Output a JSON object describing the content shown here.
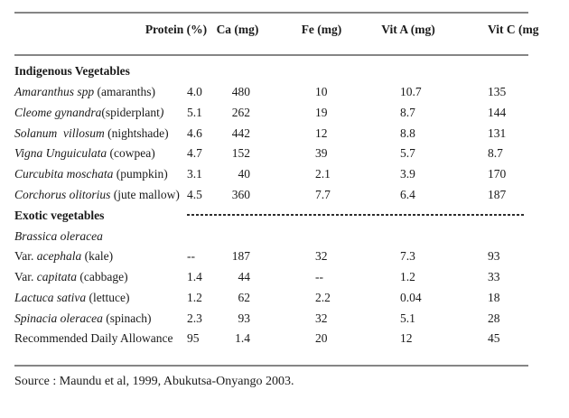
{
  "table": {
    "headers": {
      "protein": "Protein (%)",
      "ca": "Ca (mg)",
      "fe": "Fe (mg)",
      "vit_a": "Vit A (mg)",
      "vit_c": "Vit C (mg"
    },
    "rows": [
      {
        "type": "section",
        "name_parts": [
          {
            "t": "Indigenous Vegetables",
            "i": false,
            "b": true
          }
        ]
      },
      {
        "type": "data",
        "name_parts": [
          {
            "t": "Amaranthus spp",
            "i": true
          },
          {
            "t": " (amaranths)",
            "i": false
          }
        ],
        "protein": "4.0",
        "ca": "480",
        "fe": "10",
        "vit_a": "10.7",
        "vit_c": "135"
      },
      {
        "type": "data",
        "name_parts": [
          {
            "t": "Cleome gynandra",
            "i": true
          },
          {
            "t": "(spiderplant",
            "i": false
          },
          {
            "t": ")",
            "i": true
          }
        ],
        "protein": "5.1",
        "ca": "262",
        "fe": "19",
        "vit_a": "8.7",
        "vit_c": "144"
      },
      {
        "type": "data",
        "name_parts": [
          {
            "t": "Solanum  villosum",
            "i": true
          },
          {
            "t": " (nightshade)",
            "i": false
          }
        ],
        "protein": "4.6",
        "ca": "442",
        "fe": "12",
        "vit_a": "8.8",
        "vit_c": "131"
      },
      {
        "type": "data",
        "name_parts": [
          {
            "t": "Vigna Unguiculata",
            "i": true
          },
          {
            "t": " (cowpea)",
            "i": false
          }
        ],
        "protein": "4.7",
        "ca": "152",
        "fe": "39",
        "vit_a": "5.7",
        "vit_c": "8.7"
      },
      {
        "type": "data",
        "name_parts": [
          {
            "t": "Curcubita moschata",
            "i": true
          },
          {
            "t": " (pumpkin)",
            "i": false
          }
        ],
        "protein": "3.1",
        "ca": "40",
        "fe": "2.1",
        "vit_a": "3.9",
        "vit_c": "170"
      },
      {
        "type": "data",
        "name_parts": [
          {
            "t": "Corchorus olitorius",
            "i": true
          },
          {
            "t": " (jute mallow)",
            "i": false
          }
        ],
        "protein": "4.5",
        "ca": "360",
        "fe": "7.7",
        "vit_a": "6.4",
        "vit_c": "187"
      },
      {
        "type": "section-dashed",
        "name_parts": [
          {
            "t": "Exotic vegetables",
            "i": false,
            "b": true
          }
        ]
      },
      {
        "type": "label",
        "name_parts": [
          {
            "t": "Brassica oleracea",
            "i": true
          }
        ]
      },
      {
        "type": "data",
        "name_parts": [
          {
            "t": "Var. ",
            "i": false
          },
          {
            "t": "acephala",
            "i": true
          },
          {
            "t": " (kale)",
            "i": false
          }
        ],
        "protein": "--",
        "ca": "187",
        "fe": "32",
        "vit_a": "7.3",
        "vit_c": "93"
      },
      {
        "type": "data",
        "name_parts": [
          {
            "t": "Var. ",
            "i": false
          },
          {
            "t": "capitata",
            "i": true
          },
          {
            "t": " (cabbage)",
            "i": false
          }
        ],
        "protein": "1.4",
        "ca": "44",
        "fe": "--",
        "vit_a": "1.2",
        "vit_c": "33"
      },
      {
        "type": "data",
        "name_parts": [
          {
            "t": "Lactuca sativa",
            "i": true
          },
          {
            "t": " (lettuce)",
            "i": false
          }
        ],
        "protein": "1.2",
        "ca": "62",
        "fe": "2.2",
        "vit_a": "0.04",
        "vit_c": "18"
      },
      {
        "type": "data",
        "name_parts": [
          {
            "t": "Spinacia oleracea",
            "i": true
          },
          {
            "t": " (spinach)",
            "i": false
          }
        ],
        "protein": "2.3",
        "ca": "93",
        "fe": "32",
        "vit_a": "5.1",
        "vit_c": "28"
      },
      {
        "type": "data",
        "name_parts": [
          {
            "t": "Recommended Daily Allowance",
            "i": false
          }
        ],
        "protein": "95",
        "ca": "1.4",
        "fe": "20",
        "vit_a": "12",
        "vit_c": "45"
      }
    ]
  },
  "source_note": "Source : Maundu et al, 1999, Abukutsa-Onyango 2003.",
  "colors": {
    "text": "#1a1a1a",
    "rule": "#858585",
    "dash": "#2e2e2e",
    "background": "#ffffff"
  }
}
